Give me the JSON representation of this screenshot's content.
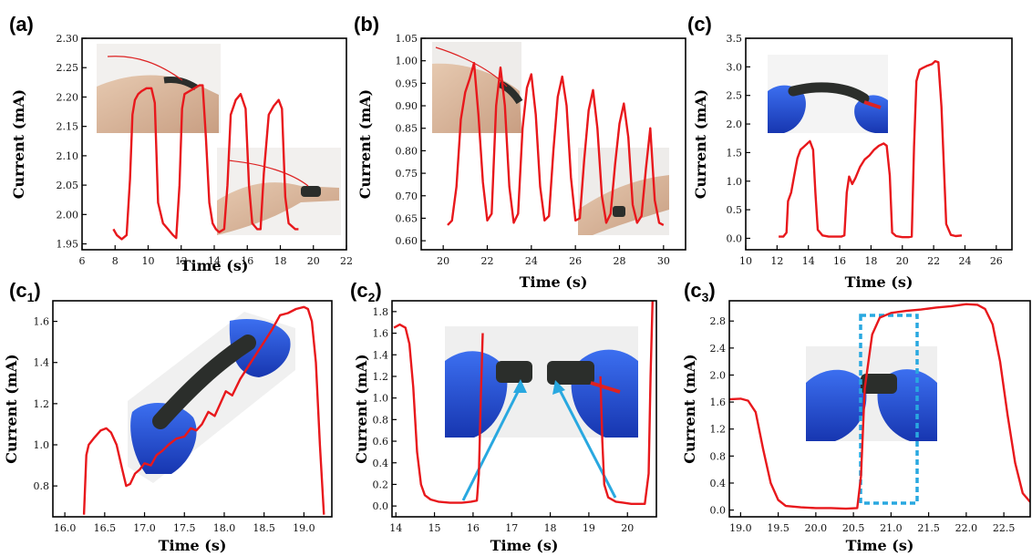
{
  "figure": {
    "panel_labels": [
      "(a)",
      "(b)",
      "(c)",
      "(c1)",
      "(c2)",
      "(c3)"
    ]
  },
  "colors": {
    "line": "#e8181c",
    "arrow": "#29a8e0",
    "dashed_box": "#29a8e0",
    "axis": "#000000",
    "glove": "#1e4fd6",
    "skin": "#d9b79c",
    "sensor": "#2b2e2b"
  },
  "chart_data": [
    {
      "id": "a",
      "type": "line",
      "xlabel": "Time (s)",
      "ylabel": "Current (mA)",
      "xlim": [
        6,
        22
      ],
      "ylim": [
        1.94,
        2.3
      ],
      "xticks": [
        6,
        8,
        10,
        12,
        14,
        16,
        18,
        20,
        22
      ],
      "yticks": [
        1.95,
        2.0,
        2.05,
        2.1,
        2.15,
        2.2,
        2.25,
        2.3
      ],
      "ytick_decimals": 2,
      "series": [
        {
          "x": [
            7.9,
            8.1,
            8.4,
            8.7,
            8.9,
            9.05,
            9.2,
            9.4,
            9.6,
            9.9,
            10.2,
            10.4,
            10.6,
            10.9,
            11.2,
            11.5,
            11.7,
            11.9,
            12.05,
            12.2,
            12.5,
            12.8,
            13.1,
            13.3,
            13.5,
            13.7,
            13.9,
            14.1,
            14.3,
            14.6,
            14.8,
            15.0,
            15.3,
            15.6,
            15.9,
            16.1,
            16.3,
            16.6,
            16.8,
            17.0,
            17.3,
            17.6,
            17.9,
            18.1,
            18.3,
            18.5,
            18.7,
            18.9,
            19.1
          ],
          "y": [
            1.975,
            1.965,
            1.958,
            1.965,
            2.06,
            2.17,
            2.195,
            2.205,
            2.21,
            2.215,
            2.215,
            2.19,
            2.02,
            1.985,
            1.975,
            1.965,
            1.96,
            2.05,
            2.18,
            2.205,
            2.21,
            2.215,
            2.22,
            2.22,
            2.13,
            2.02,
            1.985,
            1.975,
            1.97,
            1.975,
            2.05,
            2.17,
            2.195,
            2.205,
            2.18,
            2.05,
            1.985,
            1.975,
            1.975,
            2.07,
            2.17,
            2.185,
            2.195,
            2.18,
            2.03,
            1.985,
            1.98,
            1.975,
            1.975
          ]
        }
      ]
    },
    {
      "id": "b",
      "type": "line",
      "xlabel": "Time (s)",
      "ylabel": "Current (mA)",
      "xlim": [
        19,
        31
      ],
      "ylim": [
        0.58,
        1.05
      ],
      "xticks": [
        20,
        22,
        24,
        26,
        28,
        30
      ],
      "yticks": [
        0.6,
        0.65,
        0.7,
        0.75,
        0.8,
        0.85,
        0.9,
        0.95,
        1.0,
        1.05
      ],
      "ytick_decimals": 2,
      "series": [
        {
          "x": [
            20.2,
            20.4,
            20.6,
            20.8,
            21.0,
            21.2,
            21.4,
            21.6,
            21.8,
            22.0,
            22.2,
            22.4,
            22.6,
            22.8,
            23.0,
            23.2,
            23.4,
            23.6,
            23.8,
            24.0,
            24.2,
            24.4,
            24.6,
            24.8,
            25.0,
            25.2,
            25.4,
            25.6,
            25.8,
            26.0,
            26.2,
            26.4,
            26.6,
            26.8,
            27.0,
            27.2,
            27.4,
            27.6,
            27.8,
            28.0,
            28.2,
            28.4,
            28.6,
            28.8,
            29.0,
            29.2,
            29.4,
            29.6,
            29.8,
            30.0
          ],
          "y": [
            0.635,
            0.645,
            0.72,
            0.87,
            0.93,
            0.96,
            0.995,
            0.88,
            0.73,
            0.645,
            0.66,
            0.9,
            0.985,
            0.9,
            0.72,
            0.64,
            0.66,
            0.85,
            0.94,
            0.97,
            0.88,
            0.72,
            0.645,
            0.655,
            0.8,
            0.92,
            0.965,
            0.9,
            0.74,
            0.645,
            0.65,
            0.78,
            0.89,
            0.935,
            0.85,
            0.7,
            0.64,
            0.66,
            0.77,
            0.86,
            0.905,
            0.83,
            0.68,
            0.64,
            0.655,
            0.76,
            0.85,
            0.69,
            0.64,
            0.635
          ]
        }
      ]
    },
    {
      "id": "c",
      "type": "line",
      "xlabel": "Time (s)",
      "ylabel": "Current (mA)",
      "xlim": [
        10,
        27
      ],
      "ylim": [
        -0.2,
        3.5
      ],
      "xticks": [
        10,
        12,
        14,
        16,
        18,
        20,
        22,
        24,
        26
      ],
      "yticks": [
        0.0,
        0.5,
        1.0,
        1.5,
        2.0,
        2.5,
        3.0,
        3.5
      ],
      "ytick_decimals": 1,
      "series": [
        {
          "x": [
            12.1,
            12.4,
            12.6,
            12.7,
            12.9,
            13.1,
            13.3,
            13.5,
            13.7,
            13.9,
            14.1,
            14.3,
            14.45,
            14.6,
            14.9,
            15.3,
            15.7,
            16.1,
            16.3,
            16.45,
            16.6,
            16.8,
            17.0,
            17.3,
            17.6,
            17.9,
            18.2,
            18.5,
            18.8,
            19.0,
            19.2,
            19.35,
            19.6,
            20.0,
            20.4,
            20.6,
            20.75,
            20.9,
            21.1,
            21.3,
            21.6,
            21.9,
            22.1,
            22.3,
            22.5,
            22.8,
            23.1,
            23.4,
            23.8
          ],
          "y": [
            0.03,
            0.03,
            0.1,
            0.65,
            0.8,
            1.1,
            1.4,
            1.55,
            1.6,
            1.65,
            1.7,
            1.55,
            0.8,
            0.15,
            0.05,
            0.03,
            0.03,
            0.03,
            0.05,
            0.8,
            1.08,
            0.95,
            1.05,
            1.25,
            1.38,
            1.45,
            1.55,
            1.62,
            1.66,
            1.62,
            1.1,
            0.1,
            0.04,
            0.02,
            0.02,
            0.03,
            1.6,
            2.75,
            2.95,
            2.98,
            3.02,
            3.05,
            3.1,
            3.08,
            2.3,
            0.25,
            0.06,
            0.04,
            0.05
          ]
        }
      ]
    },
    {
      "id": "c1",
      "type": "line",
      "xlabel": "Time (s)",
      "ylabel": "Current  (mA)",
      "xlim": [
        15.85,
        19.35
      ],
      "ylim": [
        0.65,
        1.7
      ],
      "xticks": [
        16.0,
        16.5,
        17.0,
        17.5,
        18.0,
        18.5,
        19.0
      ],
      "yticks": [
        0.8,
        1.0,
        1.2,
        1.4,
        1.6
      ],
      "ytick_decimals": 1,
      "series": [
        {
          "x": [
            16.24,
            16.27,
            16.3,
            16.36,
            16.45,
            16.52,
            16.58,
            16.65,
            16.72,
            16.77,
            16.82,
            16.88,
            16.94,
            17.0,
            17.08,
            17.15,
            17.22,
            17.3,
            17.4,
            17.5,
            17.58,
            17.65,
            17.72,
            17.8,
            17.88,
            17.95,
            18.02,
            18.1,
            18.2,
            18.3,
            18.4,
            18.5,
            18.6,
            18.7,
            18.8,
            18.9,
            19.0,
            19.05,
            19.1,
            19.15,
            19.2,
            19.25
          ],
          "y": [
            0.66,
            0.95,
            1.0,
            1.03,
            1.07,
            1.08,
            1.06,
            1.0,
            0.88,
            0.8,
            0.81,
            0.86,
            0.88,
            0.91,
            0.9,
            0.95,
            0.97,
            1.0,
            1.03,
            1.04,
            1.08,
            1.07,
            1.1,
            1.16,
            1.14,
            1.2,
            1.26,
            1.24,
            1.32,
            1.38,
            1.44,
            1.5,
            1.56,
            1.63,
            1.64,
            1.66,
            1.67,
            1.66,
            1.6,
            1.4,
            1.0,
            0.66
          ]
        }
      ]
    },
    {
      "id": "c2",
      "type": "line",
      "xlabel": "Time (s)",
      "ylabel": "Current (mA)",
      "xlim": [
        13.9,
        20.75
      ],
      "ylim": [
        -0.1,
        1.9
      ],
      "xticks": [
        14,
        15,
        16,
        17,
        18,
        19,
        20
      ],
      "yticks": [
        0.0,
        0.2,
        0.4,
        0.6,
        0.8,
        1.0,
        1.2,
        1.4,
        1.6,
        1.8
      ],
      "ytick_decimals": 1,
      "series": [
        {
          "x": [
            13.95,
            14.1,
            14.25,
            14.35,
            14.45,
            14.55,
            14.65,
            14.75,
            14.9,
            15.1,
            15.4,
            15.7,
            15.95,
            16.1,
            16.15,
            16.2,
            16.25
          ],
          "y": [
            1.65,
            1.68,
            1.65,
            1.5,
            1.1,
            0.5,
            0.2,
            0.1,
            0.06,
            0.04,
            0.03,
            0.03,
            0.04,
            0.05,
            0.3,
            1.0,
            1.6
          ]
        },
        {
          "x": [
            19.3,
            19.35,
            19.4,
            19.5,
            19.7,
            19.9,
            20.1,
            20.3,
            20.45,
            20.55,
            20.6,
            20.65
          ],
          "y": [
            1.2,
            0.6,
            0.2,
            0.08,
            0.04,
            0.03,
            0.02,
            0.02,
            0.02,
            0.3,
            1.2,
            1.9
          ]
        }
      ]
    },
    {
      "id": "c3",
      "type": "line",
      "xlabel": "Time (s)",
      "ylabel": "Current (mA)",
      "xlim": [
        18.85,
        22.85
      ],
      "ylim": [
        -0.1,
        3.1
      ],
      "xticks": [
        19.0,
        19.5,
        20.0,
        20.5,
        21.0,
        21.5,
        22.0,
        22.5
      ],
      "yticks": [
        0.0,
        0.4,
        0.8,
        1.2,
        1.6,
        2.0,
        2.4,
        2.8
      ],
      "ytick_decimals": 1,
      "series": [
        {
          "x": [
            18.85,
            19.0,
            19.1,
            19.2,
            19.3,
            19.4,
            19.5,
            19.6,
            19.8,
            20.0,
            20.2,
            20.4,
            20.55,
            20.6,
            20.65,
            20.75,
            20.85,
            21.0,
            21.2,
            21.4,
            21.6,
            21.8,
            22.0,
            22.15,
            22.25,
            22.35,
            22.45,
            22.55,
            22.65,
            22.75,
            22.85
          ],
          "y": [
            1.64,
            1.65,
            1.62,
            1.45,
            0.9,
            0.4,
            0.15,
            0.06,
            0.04,
            0.03,
            0.03,
            0.02,
            0.03,
            0.5,
            1.8,
            2.6,
            2.85,
            2.92,
            2.95,
            2.97,
            3.0,
            3.02,
            3.05,
            3.04,
            2.98,
            2.75,
            2.2,
            1.4,
            0.7,
            0.25,
            0.12
          ]
        }
      ]
    }
  ]
}
